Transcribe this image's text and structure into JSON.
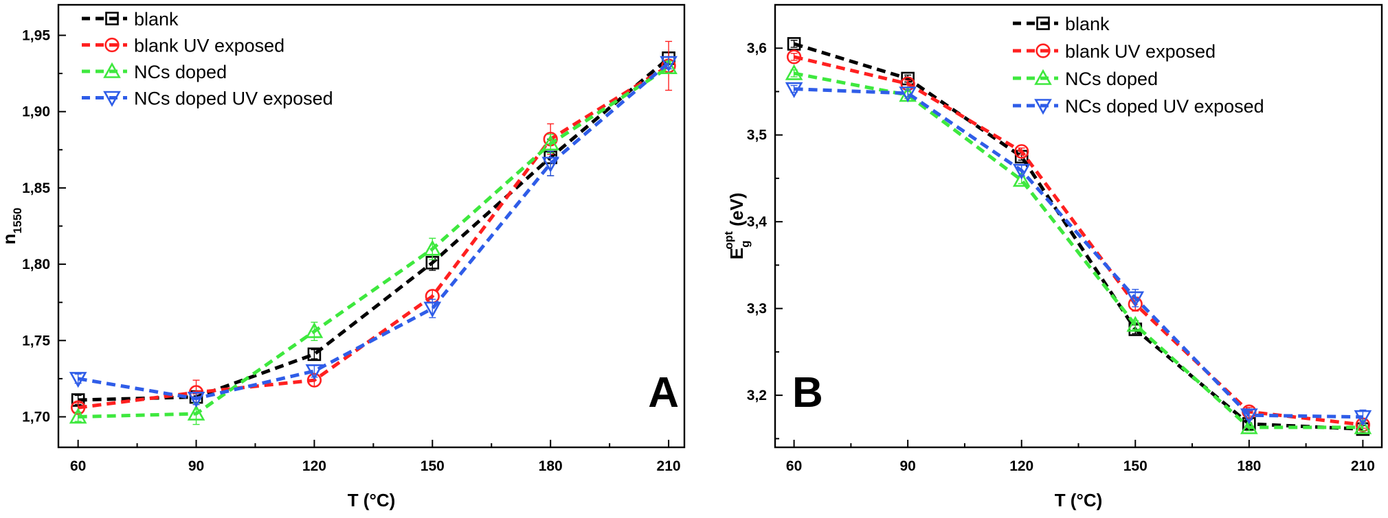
{
  "chart_data": [
    {
      "type": "line",
      "panel_label": "A",
      "xlabel": "T (°C)",
      "ylabel": "n",
      "ylabel_sub": "1550",
      "x": [
        60,
        90,
        120,
        150,
        180,
        210
      ],
      "xticks": [
        "60",
        "90",
        "120",
        "150",
        "180",
        "210"
      ],
      "yticks": [
        "1,70",
        "1,75",
        "1,80",
        "1,85",
        "1,90",
        "1,95"
      ],
      "ytick_values": [
        1.7,
        1.75,
        1.8,
        1.85,
        1.9,
        1.95
      ],
      "xlim": [
        55,
        214
      ],
      "ylim": [
        1.68,
        1.97
      ],
      "legend_position": "top-left",
      "series": [
        {
          "name": "blank",
          "color": "#000000",
          "marker": "square",
          "values": [
            1.711,
            1.713,
            1.741,
            1.801,
            1.87,
            1.935
          ],
          "errors": [
            0.003,
            0.004,
            0.003,
            0.005,
            0.012,
            0.004
          ]
        },
        {
          "name": "blank UV exposed",
          "color": "#ff2020",
          "marker": "circle",
          "values": [
            1.706,
            1.716,
            1.724,
            1.779,
            1.882,
            1.93
          ],
          "errors": [
            0.003,
            0.008,
            0.004,
            0.004,
            0.01,
            0.016
          ]
        },
        {
          "name": "NCs doped",
          "color": "#3ee83e",
          "marker": "triangle-up",
          "values": [
            1.7,
            1.702,
            1.756,
            1.81,
            1.879,
            1.929
          ],
          "errors": [
            0.003,
            0.007,
            0.006,
            0.007,
            0.006,
            0.004
          ]
        },
        {
          "name": "NCs doped UV exposed",
          "color": "#2f5de8",
          "marker": "triangle-down",
          "values": [
            1.725,
            1.712,
            1.73,
            1.771,
            1.866,
            1.932
          ],
          "errors": [
            0.003,
            0.004,
            0.004,
            0.006,
            0.008,
            0.004
          ]
        }
      ]
    },
    {
      "type": "line",
      "panel_label": "B",
      "xlabel": "T (°C)",
      "ylabel": "E",
      "ylabel_sub": "g",
      "ylabel_sup": "opt",
      "ylabel_unit": " (eV)",
      "x": [
        60,
        90,
        120,
        150,
        180,
        210
      ],
      "xticks": [
        "60",
        "90",
        "120",
        "150",
        "180",
        "210"
      ],
      "yticks": [
        "3,2",
        "3,3",
        "3,4",
        "3,5",
        "3,6"
      ],
      "ytick_values": [
        3.2,
        3.3,
        3.4,
        3.5,
        3.6
      ],
      "xlim": [
        55,
        215
      ],
      "ylim": [
        3.14,
        3.65
      ],
      "legend_position": "top-right",
      "series": [
        {
          "name": "blank",
          "color": "#000000",
          "marker": "square",
          "values": [
            3.605,
            3.565,
            3.475,
            3.276,
            3.167,
            3.161
          ],
          "errors": [
            0.004,
            0.004,
            0.004,
            0.005,
            0.005,
            0.004
          ]
        },
        {
          "name": "blank UV exposed",
          "color": "#ff2020",
          "marker": "circle",
          "values": [
            3.59,
            3.559,
            3.481,
            3.305,
            3.181,
            3.166
          ],
          "errors": [
            0.004,
            0.004,
            0.004,
            0.008,
            0.005,
            0.004
          ]
        },
        {
          "name": "NCs doped",
          "color": "#3ee83e",
          "marker": "triangle-up",
          "values": [
            3.571,
            3.546,
            3.448,
            3.281,
            3.163,
            3.163
          ],
          "errors": [
            0.004,
            0.004,
            0.004,
            0.005,
            0.004,
            0.004
          ]
        },
        {
          "name": "NCs doped UV exposed",
          "color": "#2f5de8",
          "marker": "triangle-down",
          "values": [
            3.553,
            3.548,
            3.459,
            3.312,
            3.177,
            3.175
          ],
          "errors": [
            0.004,
            0.004,
            0.006,
            0.01,
            0.005,
            0.008
          ]
        }
      ]
    }
  ]
}
